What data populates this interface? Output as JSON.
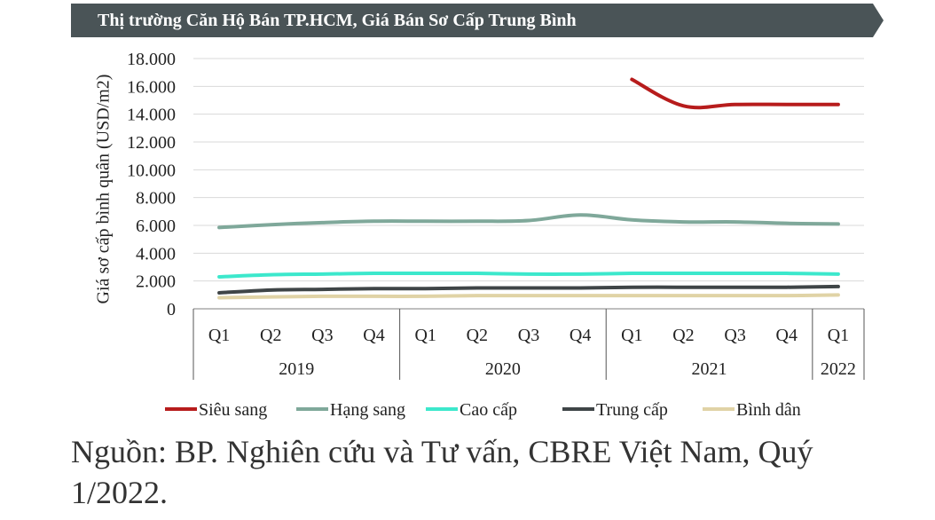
{
  "banner": {
    "title": "Thị trường Căn Hộ Bán TP.HCM, Giá Bán Sơ Cấp Trung Bình",
    "color": "#4a5457"
  },
  "chart_data": {
    "type": "line",
    "ylabel": "Giá sơ cấp bình quân (USD/m2)",
    "ylim": [
      0,
      18000
    ],
    "yticks": [
      "0",
      "2.000",
      "4.000",
      "6.000",
      "8.000",
      "10.000",
      "12.000",
      "14.000",
      "16.000",
      "18.000"
    ],
    "grid": true,
    "legend_position": "bottom",
    "categories": [
      "Q1",
      "Q2",
      "Q3",
      "Q4",
      "Q1",
      "Q2",
      "Q3",
      "Q4",
      "Q1",
      "Q2",
      "Q3",
      "Q4",
      "Q1"
    ],
    "years": [
      {
        "label": "2019",
        "quarters": 4
      },
      {
        "label": "2020",
        "quarters": 4
      },
      {
        "label": "2021",
        "quarters": 4
      },
      {
        "label": "2022",
        "quarters": 1
      }
    ],
    "series": [
      {
        "name": "Siêu sang",
        "color": "#b71c1c",
        "values": [
          null,
          null,
          null,
          null,
          null,
          null,
          null,
          null,
          16500,
          14600,
          14700,
          14700,
          14700
        ]
      },
      {
        "name": "Hạng sang",
        "color": "#7fa89a",
        "values": [
          5850,
          6050,
          6200,
          6300,
          6300,
          6300,
          6350,
          6750,
          6400,
          6250,
          6250,
          6150,
          6100
        ]
      },
      {
        "name": "Cao cấp",
        "color": "#3ce8cc",
        "values": [
          2300,
          2450,
          2500,
          2550,
          2550,
          2550,
          2500,
          2500,
          2550,
          2550,
          2550,
          2550,
          2500
        ]
      },
      {
        "name": "Trung cấp",
        "color": "#3f4547",
        "values": [
          1150,
          1350,
          1400,
          1450,
          1450,
          1500,
          1500,
          1500,
          1550,
          1550,
          1550,
          1550,
          1600
        ]
      },
      {
        "name": "Bình dân",
        "color": "#e0d3a6",
        "values": [
          800,
          850,
          900,
          900,
          900,
          950,
          950,
          950,
          950,
          950,
          950,
          950,
          1000
        ]
      }
    ]
  },
  "source": {
    "text": "Nguồn: BP. Nghiên cứu và Tư vấn, CBRE Việt Nam, Quý 1/2022."
  }
}
